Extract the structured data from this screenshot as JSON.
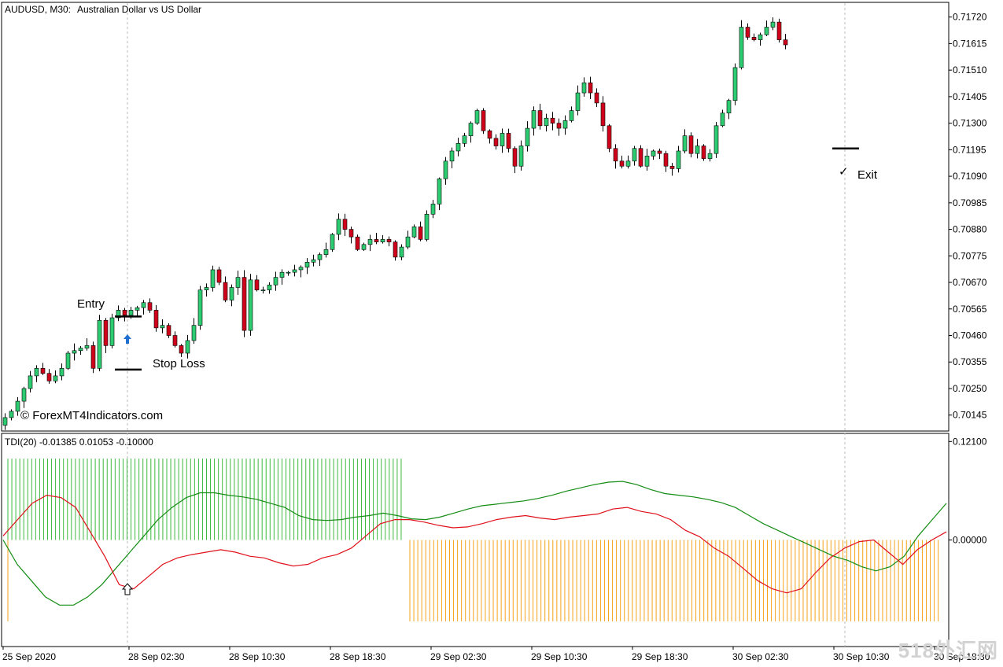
{
  "header": {
    "symbol": "AUDUSD, M30:",
    "description": "Australian Dollar vs US Dollar"
  },
  "copyright": "© ForexMT4Indicators.com",
  "watermark": "518外汇网",
  "annotations": {
    "entry": "Entry",
    "stop_loss": "Stop Loss",
    "exit": "Exit"
  },
  "indicator": {
    "label": "TDI(20) -0.01385 0.01053 -0.10000"
  },
  "colors": {
    "bull": "#2ecc71",
    "bear": "#d0021b",
    "tdi_green": "#138c13",
    "tdi_red": "#e0101a",
    "hist_green": "#3cb93c",
    "hist_orange": "#f5a31a",
    "entry_arrow": "#1f6fd0"
  },
  "chart_data": [
    {
      "type": "candlestick",
      "symbol": "AUDUSD",
      "timeframe": "M30",
      "title": "Australian Dollar vs US Dollar",
      "y_ticks": [
        0.70145,
        0.7025,
        0.70355,
        0.7046,
        0.70565,
        0.7067,
        0.70775,
        0.7088,
        0.70985,
        0.7109,
        0.71195,
        0.713,
        0.71405,
        0.7151,
        0.71615,
        0.7172
      ],
      "ylim": [
        0.70085,
        0.71775
      ],
      "x_labels": [
        "25 Sep 2020",
        "28 Sep 02:30",
        "28 Sep 10:30",
        "28 Sep 18:30",
        "29 Sep 02:30",
        "29 Sep 10:30",
        "29 Sep 18:30",
        "30 Sep 02:30",
        "30 Sep 10:30",
        "30 Sep 18:30"
      ],
      "x_label_index": [
        0,
        20,
        36,
        52,
        68,
        84,
        100,
        116,
        132,
        148
      ],
      "closes": [
        0.70135,
        0.7016,
        0.702,
        0.7025,
        0.703,
        0.7033,
        0.7031,
        0.7028,
        0.703,
        0.7033,
        0.7039,
        0.704,
        0.7041,
        0.7042,
        0.7033,
        0.7052,
        0.7042,
        0.7053,
        0.7056,
        0.7054,
        0.7056,
        0.7057,
        0.7059,
        0.7056,
        0.7049,
        0.705,
        0.7046,
        0.7042,
        0.7039,
        0.7044,
        0.705,
        0.7064,
        0.7065,
        0.7072,
        0.7067,
        0.706,
        0.7065,
        0.7069,
        0.7048,
        0.7068,
        0.7064,
        0.7064,
        0.7066,
        0.7069,
        0.7071,
        0.7071,
        0.7072,
        0.7073,
        0.7075,
        0.7076,
        0.7078,
        0.708,
        0.7086,
        0.7092,
        0.7088,
        0.7085,
        0.708,
        0.7082,
        0.7084,
        0.7083,
        0.7084,
        0.7083,
        0.7077,
        0.7081,
        0.7085,
        0.7089,
        0.7084,
        0.7094,
        0.7098,
        0.7108,
        0.7115,
        0.7119,
        0.7122,
        0.7125,
        0.713,
        0.7135,
        0.7127,
        0.7124,
        0.7121,
        0.7126,
        0.712,
        0.7113,
        0.7121,
        0.7128,
        0.7135,
        0.7129,
        0.7132,
        0.713,
        0.7128,
        0.7131,
        0.7135,
        0.7142,
        0.7146,
        0.7142,
        0.7138,
        0.7129,
        0.712,
        0.7115,
        0.7113,
        0.7115,
        0.712,
        0.7113,
        0.7117,
        0.7119,
        0.7118,
        0.7113,
        0.7112,
        0.7119,
        0.7125,
        0.7118,
        0.7121,
        0.7116,
        0.7118,
        0.7129,
        0.7134,
        0.7139,
        0.7152,
        0.7168,
        0.7164,
        0.7163,
        0.7165,
        0.7168,
        0.717,
        0.7163,
        0.7161
      ],
      "entry_price": 0.70535,
      "stop_loss_price": 0.70325,
      "exit_price": 0.712
    },
    {
      "type": "line",
      "title": "TDI(20)",
      "values_shown": [
        -0.01385,
        0.01053,
        -0.1
      ],
      "y_ticks": [
        0.0,
        0.121
      ],
      "ylim": [
        -0.13,
        0.13
      ],
      "series": [
        {
          "color": "green",
          "values": [
            0.0,
            -0.03,
            -0.05,
            -0.07,
            -0.08,
            -0.08,
            -0.07,
            -0.055,
            -0.035,
            -0.015,
            0.005,
            0.025,
            0.04,
            0.052,
            0.058,
            0.058,
            0.055,
            0.053,
            0.05,
            0.045,
            0.04,
            0.03,
            0.025,
            0.024,
            0.025,
            0.028,
            0.03,
            0.033,
            0.03,
            0.026,
            0.025,
            0.028,
            0.033,
            0.038,
            0.042,
            0.044,
            0.046,
            0.048,
            0.051,
            0.055,
            0.06,
            0.064,
            0.068,
            0.071,
            0.072,
            0.068,
            0.062,
            0.057,
            0.055,
            0.053,
            0.05,
            0.046,
            0.04,
            0.03,
            0.02,
            0.012,
            0.004,
            -0.004,
            -0.012,
            -0.02,
            -0.025,
            -0.033,
            -0.038,
            -0.033,
            -0.02,
            0.005,
            0.025,
            0.045
          ]
        },
        {
          "color": "red",
          "values": [
            0.005,
            0.025,
            0.045,
            0.055,
            0.052,
            0.04,
            0.01,
            -0.02,
            -0.055,
            -0.06,
            -0.045,
            -0.03,
            -0.022,
            -0.018,
            -0.015,
            -0.012,
            -0.015,
            -0.02,
            -0.022,
            -0.028,
            -0.032,
            -0.03,
            -0.022,
            -0.018,
            -0.01,
            0.005,
            0.02,
            0.025,
            0.025,
            0.022,
            0.018,
            0.015,
            0.016,
            0.02,
            0.025,
            0.028,
            0.03,
            0.027,
            0.025,
            0.028,
            0.03,
            0.032,
            0.038,
            0.04,
            0.035,
            0.032,
            0.025,
            0.012,
            0.004,
            -0.01,
            -0.02,
            -0.035,
            -0.05,
            -0.06,
            -0.065,
            -0.06,
            -0.04,
            -0.022,
            -0.01,
            -0.002,
            0.0,
            -0.015,
            -0.03,
            -0.012,
            0.0,
            0.01
          ]
        },
        {
          "color": "green_histogram",
          "value": 0.1,
          "bars": 100
        },
        {
          "color": "orange_histogram",
          "value": -0.1,
          "bars": 134
        }
      ]
    }
  ]
}
